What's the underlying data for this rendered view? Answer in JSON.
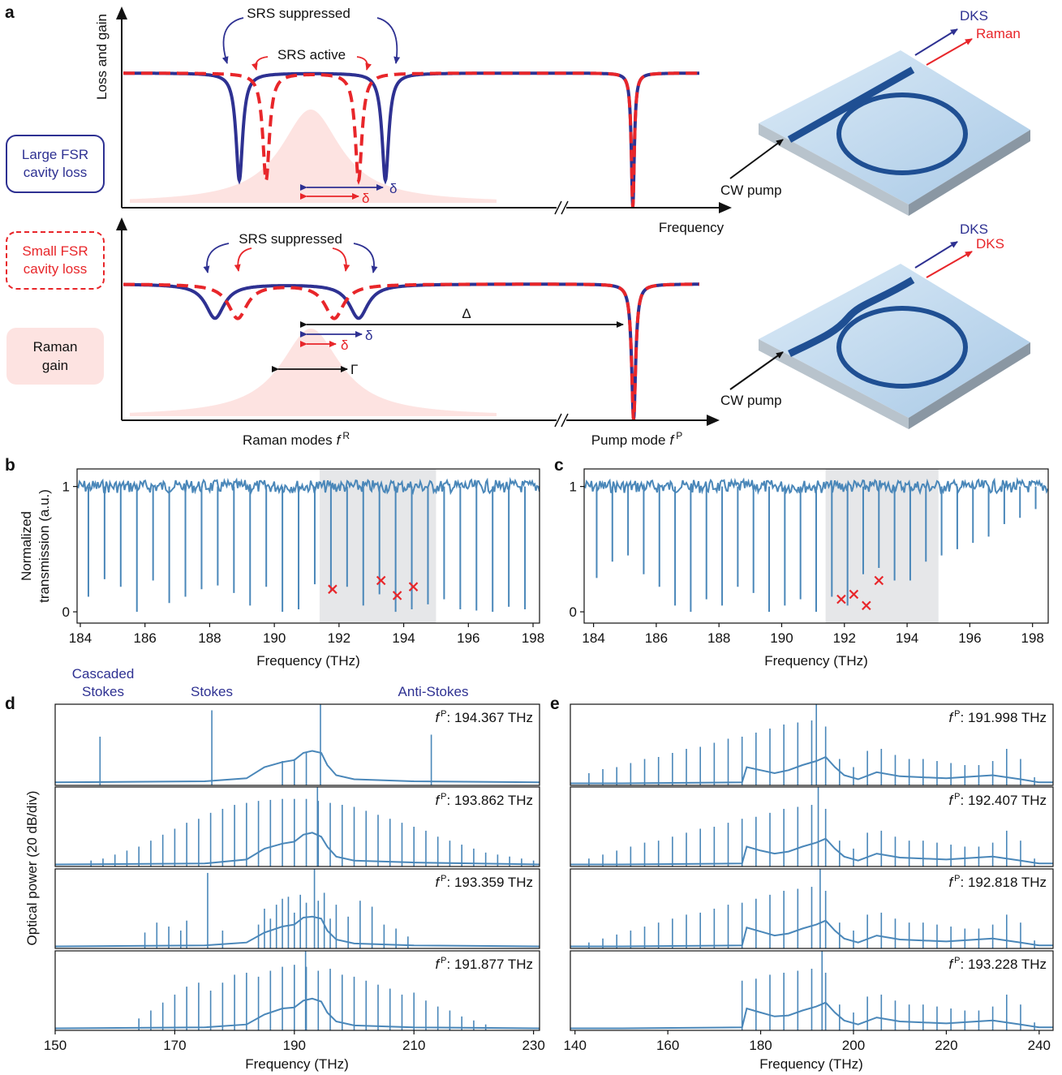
{
  "panel_labels": {
    "a": "a",
    "b": "b",
    "c": "c",
    "d": "d",
    "e": "e"
  },
  "schematic": {
    "y_axis_label": "Loss and gain",
    "x_axis_label": "Frequency",
    "srs_suppressed_top": "SRS suppressed",
    "srs_active": "SRS active",
    "srs_suppressed_bottom": "SRS suppressed",
    "delta_labels": [
      "δ",
      "δ",
      "δ",
      "δ"
    ],
    "big_delta": "Δ",
    "gamma": "Γ",
    "large_fsr": [
      "Large FSR",
      "cavity loss"
    ],
    "small_fsr": [
      "Small FSR",
      "cavity loss"
    ],
    "raman_gain": [
      "Raman",
      "gain"
    ],
    "raman_modes": {
      "text": "Raman modes",
      "symbol": "f",
      "sup": "R"
    },
    "pump_mode": {
      "text": "Pump mode",
      "symbol": "f",
      "sup": "P"
    },
    "devices": [
      {
        "outputs": [
          "DKS",
          "Raman"
        ],
        "input": "CW pump"
      },
      {
        "outputs": [
          "DKS",
          "DKS"
        ],
        "input": "CW pump"
      }
    ]
  },
  "panel_d": {
    "ylabel": "Optical power (20 dB/div)",
    "line_labels": [
      [
        "Cascaded",
        "Stokes"
      ],
      [
        "Stokes"
      ],
      [
        "Anti-Stokes"
      ]
    ]
  },
  "chart_data": [
    {
      "type": "transmission",
      "ylabel": [
        "Normalized",
        "transmission (a.u.)"
      ],
      "xlabel": "Frequency (THz)",
      "xlim": [
        183.9,
        198.2
      ],
      "ylim": [
        -0.09,
        1.14
      ],
      "xticks": [
        184,
        186,
        188,
        190,
        192,
        194,
        196,
        198
      ],
      "yticks": [
        0,
        1
      ],
      "color": "#4a87b9",
      "shaded": [
        191.4,
        195
      ],
      "shade_color": "#e6e7e9",
      "x": [
        184.25,
        184.75,
        185.25,
        185.75,
        186.25,
        186.75,
        187.25,
        187.75,
        188.25,
        188.75,
        189.25,
        189.75,
        190.25,
        190.75,
        191.25,
        191.75,
        192.25,
        192.75,
        193.25,
        193.75,
        194.25,
        194.75,
        195.25,
        195.75,
        196.25,
        196.75,
        197.25,
        197.75,
        198.25
      ],
      "values": [
        0.12,
        0.26,
        0.2,
        0.0,
        0.25,
        0.07,
        0.12,
        0.18,
        0.21,
        0.15,
        0.05,
        0.2,
        0.0,
        0.02,
        0.22,
        0.16,
        0.2,
        0.05,
        0.14,
        0.0,
        0.02,
        0.06,
        0.1,
        0.02,
        0.01,
        0.0,
        0.04,
        0.02,
        0.0
      ],
      "markers": {
        "x": [
          191.8,
          193.3,
          193.8,
          194.3
        ],
        "values": [
          0.18,
          0.25,
          0.13,
          0.2
        ],
        "color": "#e8262a"
      }
    },
    {
      "type": "transmission",
      "xlabel": "Frequency (THz)",
      "xlim": [
        183.7,
        198.5
      ],
      "ylim": [
        -0.09,
        1.14
      ],
      "xticks": [
        184,
        186,
        188,
        190,
        192,
        194,
        196,
        198
      ],
      "yticks": [
        0,
        1
      ],
      "color": "#4a87b9",
      "shaded": [
        191.4,
        195
      ],
      "shade_color": "#e6e7e9",
      "x": [
        184.1,
        184.6,
        185.1,
        185.6,
        186.1,
        186.6,
        187.1,
        187.6,
        188.1,
        188.6,
        189.1,
        189.6,
        190.1,
        190.6,
        191.1,
        191.6,
        192.1,
        192.6,
        193.1,
        193.6,
        194.1,
        194.6,
        195.1,
        195.6,
        196.1,
        196.6,
        197.1,
        197.6,
        198.1
      ],
      "values": [
        0.27,
        0.4,
        0.45,
        0.3,
        0.2,
        0.05,
        0.0,
        0.1,
        0.05,
        0.2,
        0.15,
        0.0,
        0.05,
        0.1,
        0.0,
        0.12,
        0.05,
        0.3,
        0.35,
        0.25,
        0.25,
        0.4,
        0.45,
        0.5,
        0.55,
        0.6,
        0.7,
        0.75,
        0.82
      ],
      "markers": {
        "x": [
          191.9,
          192.3,
          192.7,
          193.1
        ],
        "values": [
          0.1,
          0.14,
          0.05,
          0.25
        ],
        "color": "#e8262a"
      }
    },
    {
      "type": "spectrum",
      "xlim": [
        150,
        231
      ],
      "ylim": [
        0,
        4
      ],
      "color": "#4a87b9",
      "annotation": {
        "symbol": "f",
        "sup": "P",
        "text": ": 194.367 THz"
      },
      "comb": {
        "x": [
          157.5,
          176.2,
          188,
          190,
          192,
          194.367,
          212.9
        ],
        "values": [
          2.4,
          3.7,
          1.2,
          1.3,
          1.6,
          4.0,
          2.5
        ]
      },
      "floor": {
        "x": [
          150,
          175,
          182,
          185,
          188,
          190,
          191.5,
          193,
          194.5,
          195.5,
          197,
          200,
          210,
          231
        ],
        "values": [
          0.15,
          0.2,
          0.35,
          0.9,
          1.15,
          1.25,
          1.6,
          1.7,
          1.6,
          1.0,
          0.5,
          0.3,
          0.2,
          0.15
        ]
      }
    },
    {
      "type": "spectrum",
      "xlim": [
        150,
        231
      ],
      "ylim": [
        0,
        4
      ],
      "color": "#4a87b9",
      "annotation": {
        "symbol": "f",
        "sup": "P",
        "text": ": 193.862 THz"
      },
      "comb": {
        "x": [
          156,
          158,
          160,
          162,
          164,
          166,
          168,
          170,
          172,
          174,
          176,
          178,
          180,
          182,
          184,
          186,
          188,
          190,
          192,
          193.862,
          194,
          196,
          198,
          200,
          202,
          204,
          206,
          208,
          210,
          212,
          214,
          216,
          218,
          220,
          222,
          224,
          226,
          228,
          230
        ],
        "values": [
          0.3,
          0.4,
          0.6,
          0.8,
          1.0,
          1.3,
          1.6,
          1.9,
          2.2,
          2.4,
          2.7,
          2.9,
          3.1,
          3.2,
          3.3,
          3.35,
          3.4,
          3.4,
          3.4,
          4.0,
          3.3,
          3.2,
          3.1,
          3.0,
          2.8,
          2.6,
          2.4,
          2.2,
          2.0,
          1.8,
          1.5,
          1.3,
          1.1,
          0.9,
          0.7,
          0.6,
          0.5,
          0.4,
          0.3
        ]
      },
      "floor": {
        "x": [
          150,
          175,
          182,
          185,
          188,
          190,
          191.5,
          193,
          194.5,
          195.5,
          197,
          200,
          210,
          231
        ],
        "values": [
          0.1,
          0.15,
          0.35,
          0.9,
          1.15,
          1.25,
          1.6,
          1.7,
          1.5,
          1.0,
          0.5,
          0.3,
          0.2,
          0.1
        ]
      }
    },
    {
      "type": "spectrum",
      "xlim": [
        150,
        231
      ],
      "ylim": [
        0,
        4
      ],
      "color": "#4a87b9",
      "annotation": {
        "symbol": "f",
        "sup": "P",
        "text": ": 193.359 THz"
      },
      "comb": {
        "x": [
          165,
          167,
          169,
          171,
          172,
          175.5,
          178,
          184,
          185,
          186,
          187,
          188,
          189,
          190,
          191,
          192,
          193.359,
          194,
          195,
          196,
          197,
          199,
          201,
          203,
          205,
          207,
          209
        ],
        "values": [
          0.8,
          1.3,
          1.1,
          0.9,
          1.4,
          3.8,
          0.9,
          1.2,
          2.0,
          1.5,
          2.2,
          2.5,
          2.6,
          1.8,
          2.7,
          2.3,
          4.0,
          2.4,
          2.8,
          1.5,
          2.2,
          1.6,
          2.4,
          2.1,
          1.2,
          1.0,
          0.6
        ]
      },
      "floor": {
        "x": [
          150,
          175,
          182,
          185,
          188,
          190,
          191.5,
          193,
          194.5,
          195.5,
          197,
          200,
          210,
          231
        ],
        "values": [
          0.1,
          0.15,
          0.3,
          0.8,
          1.1,
          1.2,
          1.55,
          1.6,
          1.5,
          0.9,
          0.45,
          0.25,
          0.15,
          0.1
        ]
      }
    },
    {
      "type": "spectrum",
      "xlim": [
        150,
        231
      ],
      "ylim": [
        0,
        4
      ],
      "color": "#4a87b9",
      "xlabel": "Frequency (THz)",
      "xticks": [
        150,
        170,
        190,
        210,
        230
      ],
      "annotation": {
        "symbol": "f",
        "sup": "P",
        "text": ": 191.877 THz"
      },
      "comb": {
        "x": [
          164,
          166,
          168,
          170,
          172,
          174,
          176,
          178,
          180,
          182,
          184,
          186,
          188,
          190,
          191.877,
          192,
          194,
          196,
          198,
          200,
          202,
          204,
          206,
          208,
          210,
          212,
          214,
          216,
          218,
          220,
          222
        ],
        "values": [
          0.6,
          1.0,
          1.4,
          1.8,
          2.2,
          2.4,
          2.0,
          2.4,
          2.8,
          2.9,
          2.7,
          3.0,
          3.2,
          3.3,
          4.0,
          3.2,
          3.0,
          3.1,
          2.8,
          2.7,
          2.5,
          2.3,
          2.1,
          1.8,
          1.9,
          1.5,
          1.2,
          1.0,
          0.7,
          0.5,
          0.3
        ]
      },
      "floor": {
        "x": [
          150,
          175,
          182,
          185,
          188,
          190,
          191.5,
          193,
          194.5,
          195.5,
          197,
          200,
          210,
          231
        ],
        "values": [
          0.1,
          0.15,
          0.3,
          0.8,
          1.1,
          1.15,
          1.5,
          1.6,
          1.45,
          0.9,
          0.45,
          0.25,
          0.15,
          0.1
        ]
      }
    },
    {
      "type": "spectrum",
      "xlim": [
        139,
        243
      ],
      "ylim": [
        0,
        4
      ],
      "color": "#4a87b9",
      "annotation": {
        "symbol": "f",
        "sup": "P",
        "text": ": 191.998 THz"
      },
      "comb": {
        "x": [
          143,
          146,
          149,
          152,
          155,
          158,
          161,
          164,
          167,
          170,
          173,
          176,
          179,
          182,
          185,
          188,
          191,
          191.998,
          194,
          197,
          200,
          203,
          206,
          209,
          212,
          215,
          218,
          221,
          224,
          227,
          230,
          233,
          236,
          239
        ],
        "values": [
          0.6,
          0.8,
          0.9,
          1.1,
          1.3,
          1.4,
          1.6,
          1.8,
          1.9,
          2.1,
          2.3,
          2.4,
          2.6,
          2.8,
          3.0,
          3.1,
          3.2,
          4.0,
          2.9,
          1.3,
          0.9,
          1.7,
          1.8,
          1.5,
          1.3,
          1.3,
          1.2,
          1.1,
          1.0,
          1.0,
          1.2,
          1.8,
          1.3,
          0.4
        ]
      },
      "floor": {
        "x": [
          139,
          150,
          176,
          177,
          180,
          183,
          186,
          189,
          192,
          194,
          196,
          198,
          201,
          205,
          210,
          220,
          230,
          236,
          240,
          243
        ],
        "values": [
          0.1,
          0.1,
          0.15,
          0.9,
          0.75,
          0.6,
          0.75,
          1.0,
          1.2,
          1.4,
          0.9,
          0.5,
          0.3,
          0.65,
          0.45,
          0.35,
          0.5,
          0.3,
          0.15,
          0.15
        ]
      }
    },
    {
      "type": "spectrum",
      "xlim": [
        139,
        243
      ],
      "ylim": [
        0,
        4
      ],
      "color": "#4a87b9",
      "annotation": {
        "symbol": "f",
        "sup": "P",
        "text": ": 192.407 THz"
      },
      "comb": {
        "x": [
          143,
          146,
          149,
          152,
          155,
          158,
          161,
          164,
          167,
          170,
          173,
          176,
          179,
          182,
          185,
          188,
          191,
          192.407,
          194,
          197,
          200,
          203,
          206,
          209,
          212,
          215,
          218,
          221,
          224,
          227,
          230,
          233,
          236,
          239
        ],
        "values": [
          0.4,
          0.6,
          0.8,
          1.0,
          1.2,
          1.3,
          1.5,
          1.7,
          1.9,
          2.0,
          2.2,
          2.4,
          2.5,
          2.7,
          2.9,
          3.0,
          3.1,
          4.0,
          2.9,
          1.3,
          0.9,
          1.7,
          1.8,
          1.5,
          1.3,
          1.3,
          1.2,
          1.1,
          1.0,
          1.0,
          1.2,
          1.8,
          1.3,
          0.4
        ]
      },
      "floor": {
        "x": [
          139,
          150,
          176,
          177,
          180,
          183,
          186,
          189,
          192,
          194,
          196,
          198,
          201,
          205,
          210,
          220,
          230,
          236,
          240,
          243
        ],
        "values": [
          0.1,
          0.1,
          0.15,
          1.0,
          0.8,
          0.65,
          0.75,
          1.0,
          1.2,
          1.4,
          0.9,
          0.5,
          0.3,
          0.65,
          0.45,
          0.35,
          0.5,
          0.3,
          0.15,
          0.15
        ]
      }
    },
    {
      "type": "spectrum",
      "xlim": [
        139,
        243
      ],
      "ylim": [
        0,
        4
      ],
      "color": "#4a87b9",
      "annotation": {
        "symbol": "f",
        "sup": "P",
        "text": ": 192.818 THz"
      },
      "comb": {
        "x": [
          143,
          146,
          149,
          152,
          155,
          158,
          161,
          164,
          167,
          170,
          173,
          176,
          179,
          182,
          185,
          188,
          191,
          192.818,
          194,
          197,
          200,
          203,
          206,
          209,
          212,
          215,
          218,
          221,
          224,
          227,
          230,
          233,
          236,
          239
        ],
        "values": [
          0.3,
          0.5,
          0.7,
          0.9,
          1.1,
          1.3,
          1.5,
          1.7,
          1.8,
          2.0,
          2.2,
          2.3,
          2.5,
          2.7,
          2.9,
          3.0,
          3.1,
          4.0,
          2.9,
          1.3,
          0.9,
          1.7,
          1.8,
          1.5,
          1.3,
          1.3,
          1.2,
          1.1,
          1.0,
          1.0,
          1.2,
          1.7,
          1.3,
          0.4
        ]
      },
      "floor": {
        "x": [
          139,
          150,
          176,
          177,
          180,
          183,
          186,
          189,
          192,
          194,
          196,
          198,
          201,
          205,
          210,
          220,
          230,
          236,
          240,
          243
        ],
        "values": [
          0.1,
          0.1,
          0.15,
          1.05,
          0.85,
          0.65,
          0.75,
          1.0,
          1.2,
          1.4,
          0.9,
          0.5,
          0.3,
          0.65,
          0.45,
          0.35,
          0.5,
          0.3,
          0.15,
          0.15
        ]
      }
    },
    {
      "type": "spectrum",
      "xlim": [
        139,
        243
      ],
      "ylim": [
        0,
        4
      ],
      "color": "#4a87b9",
      "xlabel": "Frequency (THz)",
      "xticks": [
        140,
        160,
        180,
        200,
        220,
        240
      ],
      "annotation": {
        "symbol": "f",
        "sup": "P",
        "text": ": 193.228 THz"
      },
      "comb": {
        "x": [
          176,
          179,
          182,
          185,
          188,
          191,
          193.228,
          194,
          197,
          200,
          203,
          206,
          209,
          212,
          215,
          218,
          221,
          224,
          227,
          230,
          233,
          236,
          239
        ],
        "values": [
          2.5,
          2.6,
          2.8,
          2.9,
          3.0,
          3.1,
          4.0,
          2.9,
          1.3,
          0.9,
          1.7,
          1.8,
          1.5,
          1.3,
          1.3,
          1.2,
          1.1,
          1.0,
          1.0,
          1.2,
          1.8,
          1.3,
          0.4
        ]
      },
      "floor": {
        "x": [
          139,
          150,
          176,
          177,
          180,
          183,
          186,
          189,
          192,
          194,
          196,
          198,
          201,
          205,
          210,
          220,
          230,
          236,
          240,
          243
        ],
        "values": [
          0.1,
          0.1,
          0.15,
          1.1,
          0.9,
          0.7,
          0.75,
          1.0,
          1.2,
          1.4,
          0.9,
          0.5,
          0.3,
          0.65,
          0.45,
          0.35,
          0.5,
          0.3,
          0.15,
          0.15
        ]
      }
    }
  ]
}
